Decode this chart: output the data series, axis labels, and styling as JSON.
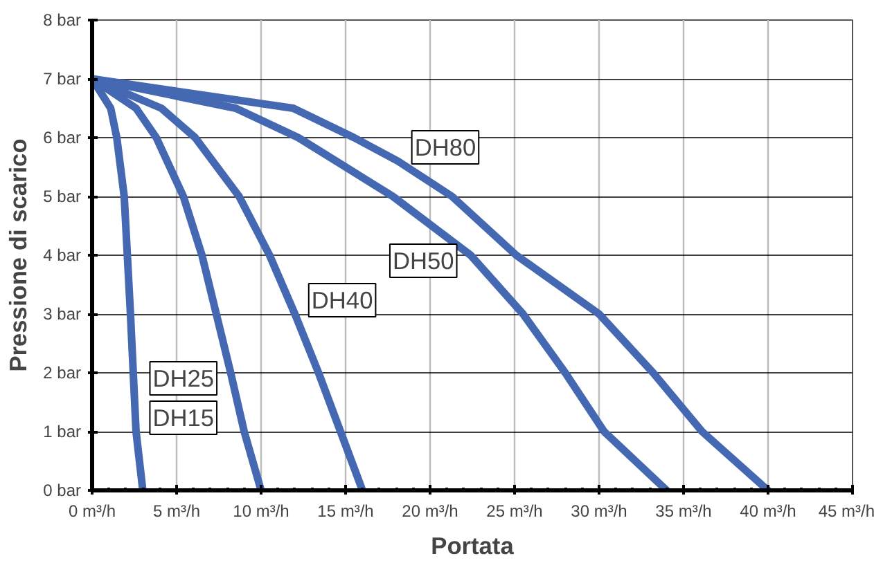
{
  "chart_data": {
    "type": "line",
    "xlabel": "Portata",
    "ylabel": "Pressione di scarico",
    "xlim": [
      0,
      45
    ],
    "ylim": [
      0,
      8
    ],
    "xticks": [
      {
        "value": 0,
        "label": "0 m³/h"
      },
      {
        "value": 5,
        "label": "5 m³/h"
      },
      {
        "value": 10,
        "label": "10 m³/h"
      },
      {
        "value": 15,
        "label": "15 m³/h"
      },
      {
        "value": 20,
        "label": "20 m³/h"
      },
      {
        "value": 25,
        "label": "25 m³/h"
      },
      {
        "value": 30,
        "label": "30 m³/h"
      },
      {
        "value": 35,
        "label": "35 m³/h"
      },
      {
        "value": 40,
        "label": "40 m³/h"
      },
      {
        "value": 45,
        "label": "45 m³/h"
      }
    ],
    "yticks": [
      {
        "value": 0,
        "label": "0 bar"
      },
      {
        "value": 1,
        "label": "1 bar"
      },
      {
        "value": 2,
        "label": "2 bar"
      },
      {
        "value": 3,
        "label": "3 bar"
      },
      {
        "value": 4,
        "label": "4 bar"
      },
      {
        "value": 5,
        "label": "5 bar"
      },
      {
        "value": 6,
        "label": "6 bar"
      },
      {
        "value": 7,
        "label": "7 bar"
      },
      {
        "value": 8,
        "label": "8 bar"
      }
    ],
    "grid": true,
    "marker": "none",
    "line_style": "solid",
    "legend": false,
    "series": [
      {
        "name": "DH15",
        "color": "#4568b2",
        "x": [
          0,
          1.1,
          1.46,
          1.9,
          2.27,
          2.6,
          3.0
        ],
        "values": [
          7,
          6.5,
          6,
          5,
          3,
          1,
          0
        ]
      },
      {
        "name": "DH25",
        "color": "#4568b2",
        "x": [
          0,
          2.6,
          3.8,
          5.4,
          6.5,
          7.35,
          8.2,
          9.0,
          10.0
        ],
        "values": [
          7,
          6.5,
          6,
          5,
          4,
          3,
          2,
          1,
          0
        ]
      },
      {
        "name": "DH40",
        "color": "#4568b2",
        "x": [
          0,
          4.1,
          6.1,
          8.7,
          10.5,
          12.0,
          13.4,
          14.7,
          16.0
        ],
        "values": [
          7,
          6.5,
          6,
          5,
          4,
          3,
          2,
          1,
          0
        ]
      },
      {
        "name": "DH50",
        "color": "#4568b2",
        "x": [
          0,
          8.5,
          12.2,
          17.8,
          22.4,
          25.5,
          28.0,
          30.3,
          34.0
        ],
        "values": [
          7,
          6.5,
          6,
          5,
          4,
          3,
          2,
          1,
          0
        ]
      },
      {
        "name": "DH80",
        "color": "#4568b2",
        "x": [
          0,
          11.9,
          15.5,
          18.1,
          21.3,
          25.1,
          30.0,
          33.2,
          36.1,
          40.0
        ],
        "values": [
          7,
          6.5,
          6,
          5.6,
          5,
          4,
          3,
          2,
          1,
          0
        ]
      }
    ]
  }
}
